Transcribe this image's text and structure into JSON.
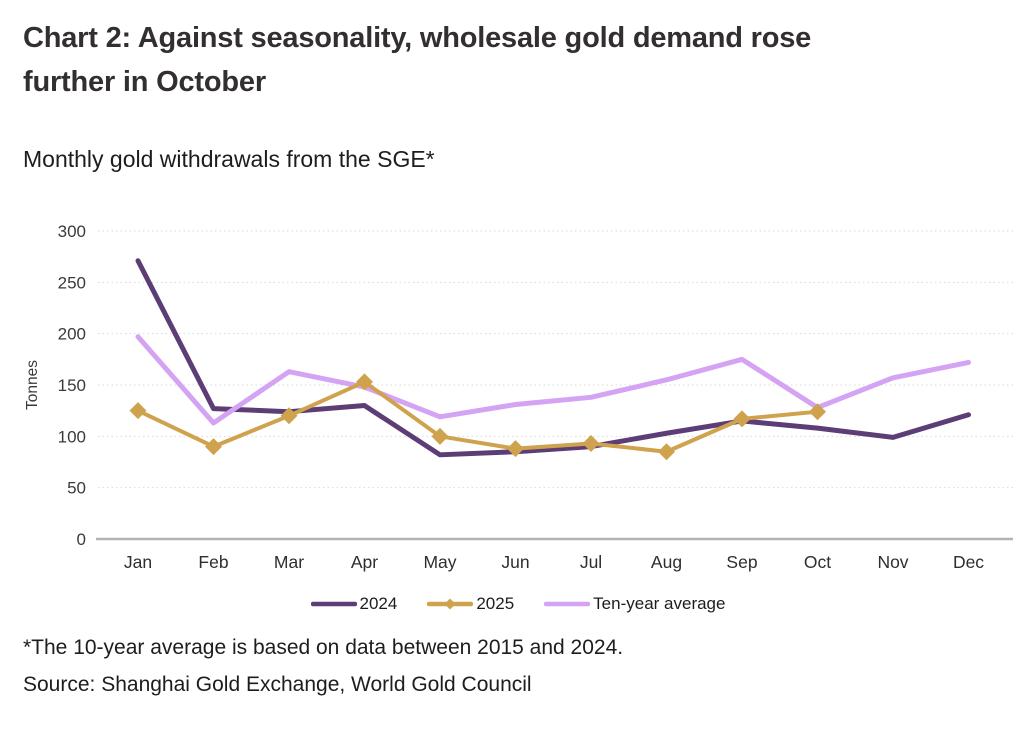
{
  "page": {
    "title": "Chart 2: Against seasonality, wholesale gold demand rose further in October",
    "subtitle": "Monthly gold withdrawals from the SGE*",
    "footnote": "*The 10-year average is based on data between 2015 and 2024.",
    "source": "Source: Shanghai Gold Exchange, World Gold Council"
  },
  "colors": {
    "series_2024": "#5c3d76",
    "series_2025": "#cfa24d",
    "series_ten_year": "#d4a3f3",
    "gridline": "#d9d9d9",
    "axis_line": "#b3b3b3",
    "tick_text": "#3a3a3a"
  },
  "chart_data": {
    "type": "line",
    "title": "Monthly gold withdrawals from the SGE*",
    "xlabel": "",
    "ylabel": "Tonnes",
    "ylim": [
      0,
      300
    ],
    "yticks": [
      0,
      50,
      100,
      150,
      200,
      250,
      300
    ],
    "grid": true,
    "legend_position": "bottom",
    "categories": [
      "Jan",
      "Feb",
      "Mar",
      "Apr",
      "May",
      "Jun",
      "Jul",
      "Aug",
      "Sep",
      "Oct",
      "Nov",
      "Dec"
    ],
    "series": [
      {
        "name": "2024",
        "color": "#5c3d76",
        "marker": "none",
        "values": [
          271,
          127,
          124,
          130,
          82,
          85,
          90,
          103,
          115,
          108,
          99,
          121
        ]
      },
      {
        "name": "2025",
        "color": "#cfa24d",
        "marker": "diamond",
        "values": [
          125,
          90,
          120,
          153,
          100,
          88,
          93,
          85,
          117,
          124
        ]
      },
      {
        "name": "Ten-year average",
        "color": "#d4a3f3",
        "marker": "none",
        "values": [
          197,
          113,
          163,
          148,
          119,
          131,
          138,
          155,
          175,
          128,
          157,
          172
        ]
      }
    ]
  }
}
